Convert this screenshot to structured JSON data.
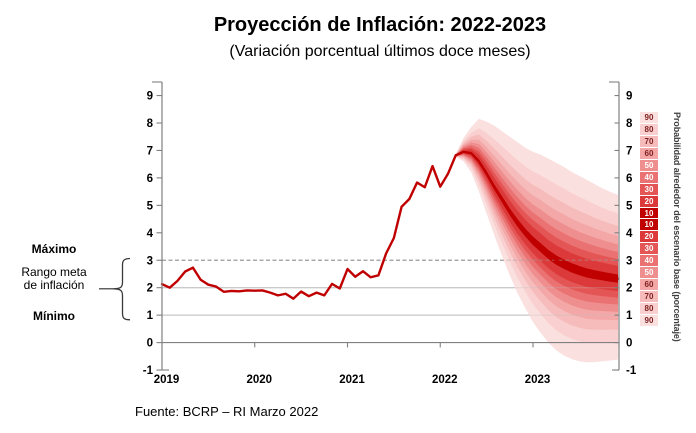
{
  "axes": {
    "y_ticks": [
      "9",
      "8",
      "7",
      "6",
      "5",
      "4",
      "3",
      "2",
      "1",
      "0",
      "-1"
    ]
  },
  "chart_data": {
    "type": "line+fan",
    "title": "Proyección de Inflación: 2022-2023",
    "subtitle": "(Variación porcentual últimos doce meses)",
    "source": "Fuente: BCRP – RI Marzo 2022",
    "ylim": [
      -1,
      9.5
    ],
    "x_years": [
      "2019",
      "2020",
      "2021",
      "2022",
      "2023"
    ],
    "grid": {
      "dashed_line_at": 3,
      "solid_lines": [
        1,
        2
      ],
      "baseline": 0
    },
    "historical": {
      "start_year": 2019,
      "start_month": 1,
      "frequency": "monthly",
      "values": [
        2.13,
        2.0,
        2.25,
        2.59,
        2.73,
        2.29,
        2.11,
        2.04,
        1.85,
        1.88,
        1.87,
        1.9,
        1.89,
        1.9,
        1.82,
        1.72,
        1.78,
        1.6,
        1.86,
        1.69,
        1.82,
        1.72,
        2.14,
        1.97,
        2.68,
        2.4,
        2.6,
        2.38,
        2.45,
        3.25,
        3.81,
        4.95,
        5.23,
        5.83,
        5.66,
        6.43,
        5.68,
        6.15,
        6.82
      ],
      "color": "#c00000"
    },
    "projection": {
      "start_year": 2022,
      "start_month": 3,
      "frequency": "monthly",
      "center": [
        6.82,
        6.95,
        6.9,
        6.6,
        6.15,
        5.65,
        5.2,
        4.75,
        4.35,
        4.0,
        3.7,
        3.45,
        3.2,
        3.0,
        2.85,
        2.72,
        2.62,
        2.53,
        2.47,
        2.42,
        2.37,
        2.33
      ],
      "spread_upper": [
        0.05,
        0.5,
        0.95,
        1.55,
        1.9,
        2.25,
        2.5,
        2.75,
        2.95,
        3.1,
        3.25,
        3.4,
        3.5,
        3.55,
        3.55,
        3.5,
        3.45,
        3.4,
        3.3,
        3.2,
        3.12,
        3.05
      ],
      "spread_lower": [
        0.05,
        0.35,
        0.7,
        1.1,
        1.45,
        1.75,
        2.05,
        2.3,
        2.55,
        2.75,
        2.95,
        3.1,
        3.2,
        3.28,
        3.32,
        3.32,
        3.3,
        3.25,
        3.18,
        3.1,
        3.02,
        2.95
      ],
      "bands": [
        {
          "probability": 10,
          "fraction": 0.05,
          "color": "#c00000"
        },
        {
          "probability": 20,
          "fraction": 0.154,
          "color": "#dc3a3a"
        },
        {
          "probability": 30,
          "fraction": 0.234,
          "color": "#e45656"
        },
        {
          "probability": 40,
          "fraction": 0.319,
          "color": "#ea7272"
        },
        {
          "probability": 50,
          "fraction": 0.41,
          "color": "#ef8e8e"
        },
        {
          "probability": 60,
          "fraction": 0.512,
          "color": "#f3a7a7"
        },
        {
          "probability": 70,
          "fraction": 0.63,
          "color": "#f6bcbc"
        },
        {
          "probability": 80,
          "fraction": 0.779,
          "color": "#f9cfcf"
        },
        {
          "probability": 90,
          "fraction": 1.0,
          "color": "#fbe0e0"
        }
      ]
    },
    "target_range": {
      "max": 3,
      "min": 1,
      "labels": {
        "max": "Máximo",
        "range": [
          "Rango meta",
          "de inflación"
        ],
        "min": "Mínimo"
      }
    },
    "legend_caption": "Probabilidad alrededor del escenario base (porcentaje)",
    "legend_dark_text_color": "#7f1f1f",
    "line_color": "#c00000"
  }
}
